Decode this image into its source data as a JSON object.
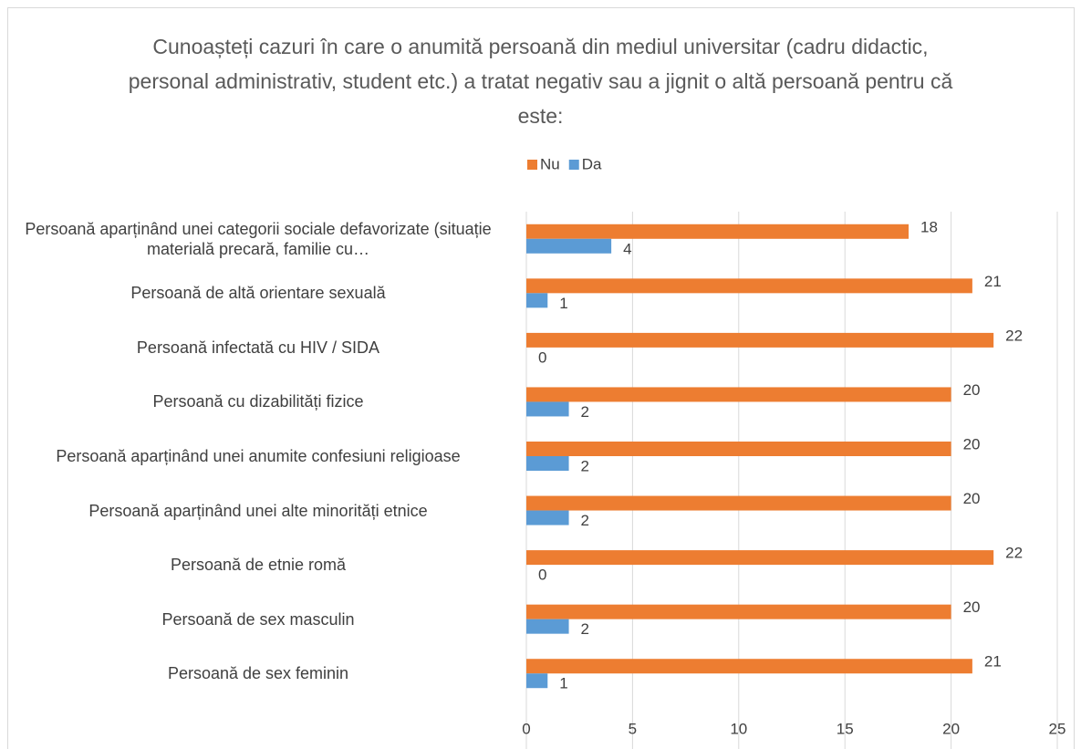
{
  "chart_data": {
    "type": "hbar",
    "title": "Cunoașteți cazuri în care o anumită persoană din mediul universitar (cadru didactic, personal administrativ, student etc.) a tratat negativ sau a jignit o altă persoană pentru că este:",
    "categories": [
      "Persoană aparținând unei categorii sociale defavorizate (situație materială precară, familie cu…",
      "Persoană de altă orientare sexuală",
      "Persoană infectată cu HIV / SIDA",
      "Persoană cu dizabilități fizice",
      "Persoană aparținând unei anumite confesiuni religioase",
      "Persoană aparținând unei alte minorități etnice",
      "Persoană de etnie romă",
      "Persoană de sex masculin",
      "Persoană de sex feminin"
    ],
    "series": [
      {
        "name": "Nu",
        "color": "#ed7d31",
        "values": [
          18,
          21,
          22,
          20,
          20,
          20,
          22,
          20,
          21
        ]
      },
      {
        "name": "Da",
        "color": "#5b9bd5",
        "values": [
          4,
          1,
          0,
          2,
          2,
          2,
          0,
          2,
          1
        ]
      }
    ],
    "xlim": [
      0,
      25
    ],
    "xticks": [
      0,
      5,
      10,
      15,
      20,
      25
    ],
    "grid": true,
    "legend": "top"
  }
}
